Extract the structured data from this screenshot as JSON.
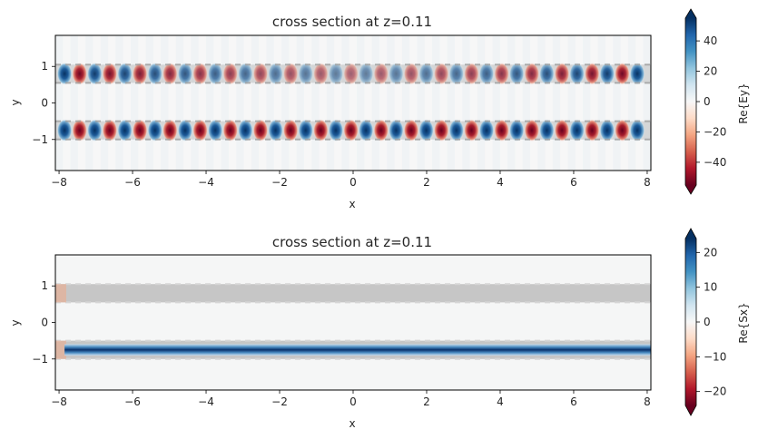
{
  "chart_data": [
    {
      "type": "heatmap",
      "title": "cross section at z=0.11",
      "xlabel": "x",
      "ylabel": "y",
      "xlim": [
        -8.1,
        8.1
      ],
      "ylim": [
        -1.85,
        1.85
      ],
      "xticks": [
        -8,
        -6,
        -4,
        -2,
        0,
        2,
        4,
        6,
        8
      ],
      "yticks": [
        1,
        0,
        -1
      ],
      "field": "Re{Ey}",
      "pattern": "alternating standing-wave lobes confined to two waveguides",
      "waveguide_y_centers": [
        0.8,
        -0.75
      ],
      "waveguide_half_width": 0.25,
      "period": 0.41,
      "colorbar": {
        "label": "Re{Ey}",
        "range": [
          -55,
          55
        ],
        "ticks": [
          40,
          20,
          0,
          -20,
          -40
        ],
        "colormap": "RdBu",
        "extend": "both"
      }
    },
    {
      "type": "heatmap",
      "title": "cross section at z=0.11",
      "xlabel": "x",
      "ylabel": "y",
      "xlim": [
        -8.1,
        8.1
      ],
      "ylim": [
        -1.85,
        1.85
      ],
      "xticks": [
        -8,
        -6,
        -4,
        -2,
        0,
        2,
        4,
        6,
        8
      ],
      "yticks": [
        1,
        0,
        -1
      ],
      "field": "Re{Sx}",
      "pattern": "steady power flow confined to lower waveguide",
      "waveguide_y_centers": [
        0.8,
        -0.75
      ],
      "waveguide_half_width": 0.25,
      "colorbar": {
        "label": "Re{Sx}",
        "range": [
          -24,
          24
        ],
        "ticks": [
          20,
          10,
          0,
          -10,
          -20
        ],
        "colormap": "RdBu",
        "extend": "both"
      }
    }
  ]
}
